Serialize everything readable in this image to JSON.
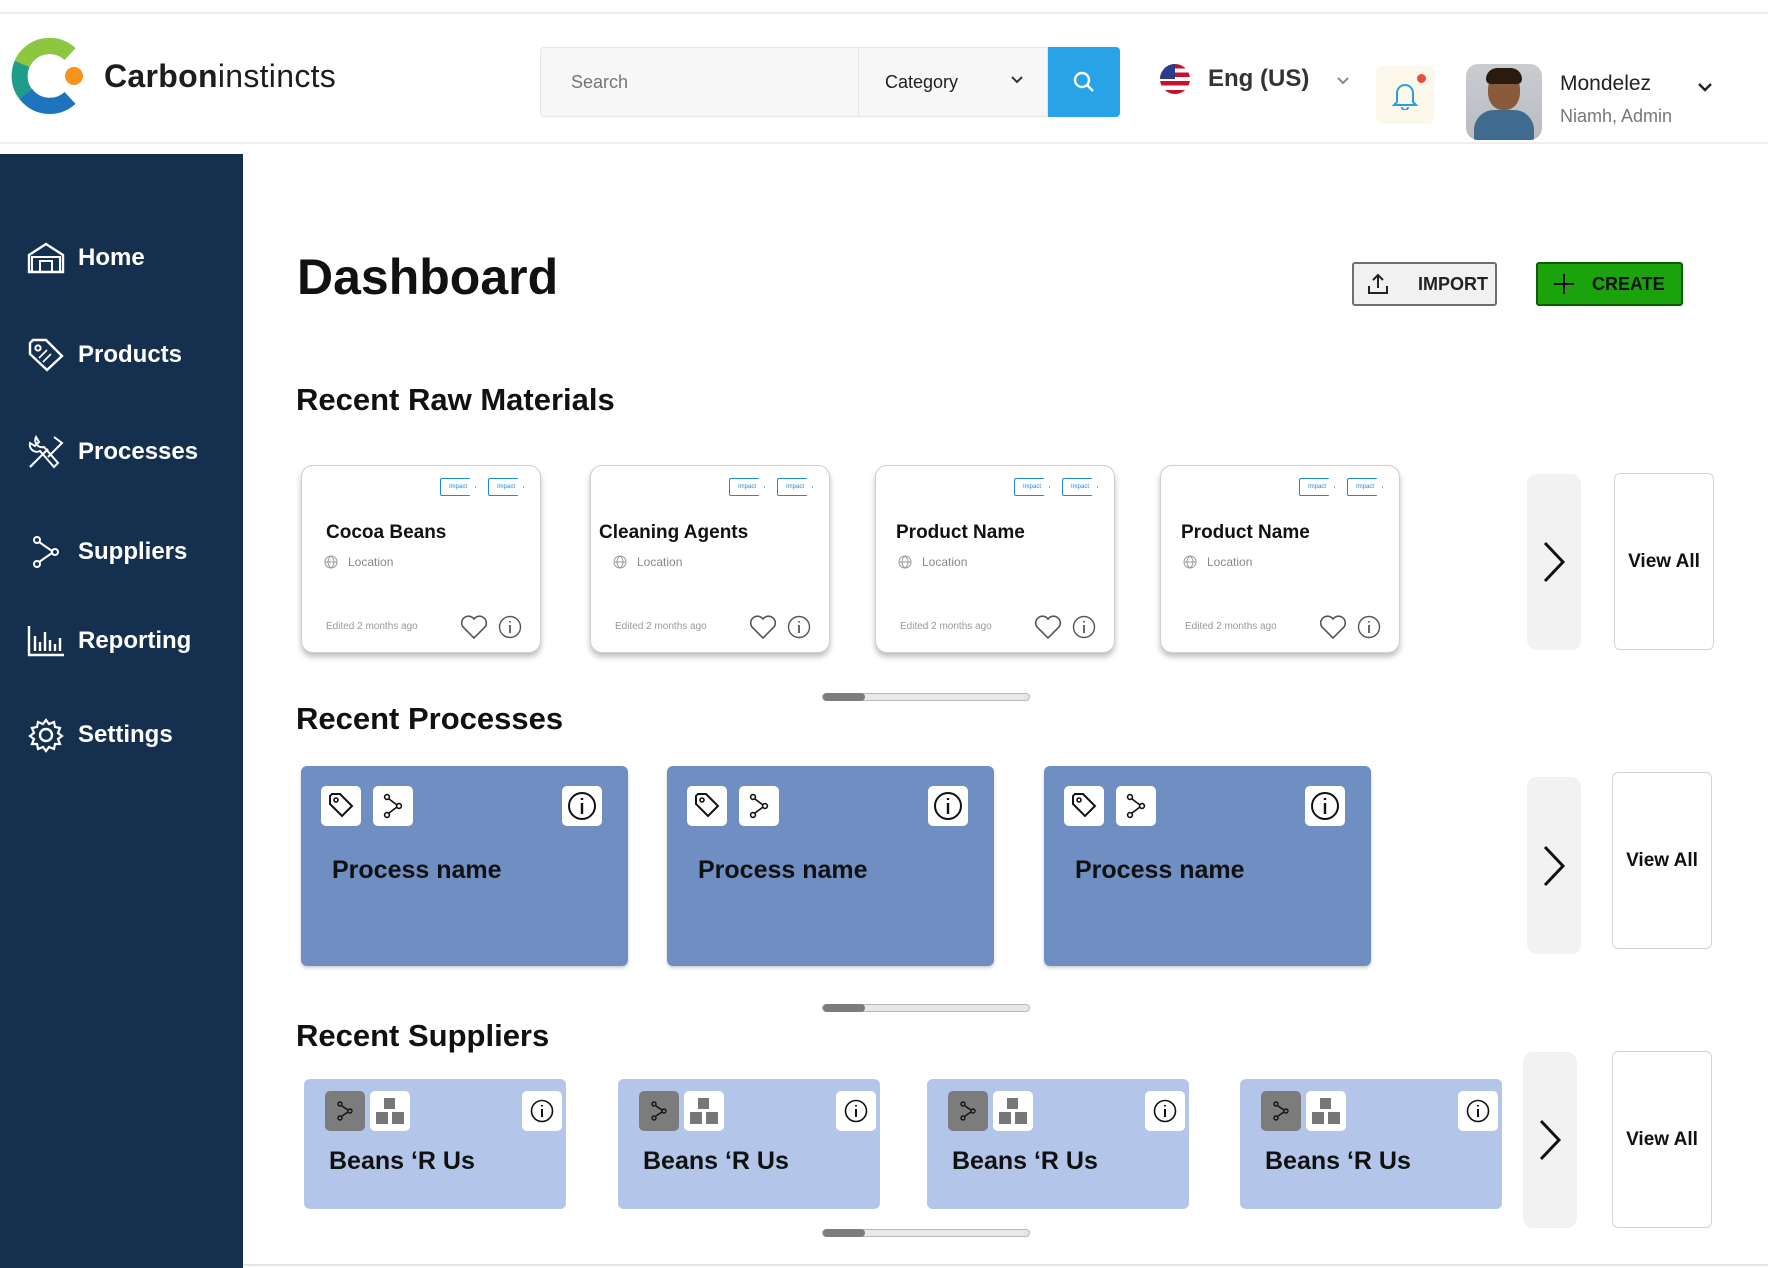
{
  "brand": {
    "bold": "Carbon",
    "light": "instincts"
  },
  "search": {
    "placeholder": "Search",
    "category_label": "Category"
  },
  "language": {
    "label": "Eng (US)",
    "flag": "us-flag-icon"
  },
  "user": {
    "name": "Mondelez",
    "role": "Niamh, Admin"
  },
  "sidebar": {
    "items": [
      {
        "label": "Home",
        "icon": "home-icon"
      },
      {
        "label": "Products",
        "icon": "tag-icon"
      },
      {
        "label": "Processes",
        "icon": "tools-icon"
      },
      {
        "label": "Suppliers",
        "icon": "branch-icon"
      },
      {
        "label": "Reporting",
        "icon": "bar-chart-icon"
      },
      {
        "label": "Settings",
        "icon": "gear-icon"
      }
    ]
  },
  "page": {
    "title": "Dashboard",
    "import_label": "IMPORT",
    "create_label": "CREATE"
  },
  "raw_materials": {
    "title": "Recent Raw Materials",
    "tag_label": "Impact",
    "items": [
      {
        "name": "Cocoa Beans",
        "location": "Location",
        "edited": "Edited 2 months ago"
      },
      {
        "name": "Cleaning Agents",
        "location": "Location",
        "edited": "Edited 2 months ago"
      },
      {
        "name": "Product Name",
        "location": "Location",
        "edited": "Edited 2 months ago"
      },
      {
        "name": "Product Name",
        "location": "Location",
        "edited": "Edited 2 months ago"
      }
    ],
    "view_all": "View All"
  },
  "processes": {
    "title": "Recent Processes",
    "items": [
      {
        "name": "Process name"
      },
      {
        "name": "Process name"
      },
      {
        "name": "Process name"
      }
    ],
    "view_all": "View All"
  },
  "suppliers": {
    "title": "Recent Suppliers",
    "items": [
      {
        "name": "Beans ‘R Us"
      },
      {
        "name": "Beans ‘R Us"
      },
      {
        "name": "Beans ‘R Us"
      },
      {
        "name": "Beans ‘R Us"
      }
    ],
    "view_all": "View All"
  },
  "colors": {
    "sidebar": "#15304f",
    "search_button": "#29a3e8",
    "create_button": "#1aa30b",
    "process_card": "#6f8fc2",
    "supplier_card": "#b3c6e9",
    "tag_blue": "#1e8ad6"
  }
}
